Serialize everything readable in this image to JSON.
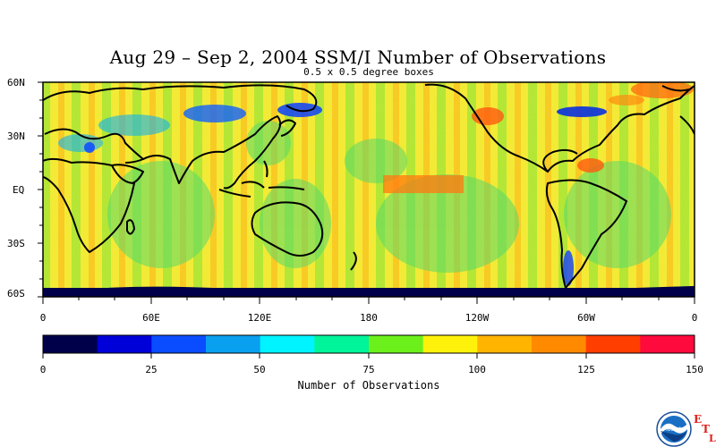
{
  "title": "Aug 29 – Sep 2, 2004 SSM/I Number of Observations",
  "subtitle": "0.5 x 0.5 degree boxes",
  "lat_labels": [
    "60N",
    "30N",
    "EQ",
    "30S",
    "60S"
  ],
  "lon_labels": [
    "0",
    "60E",
    "120E",
    "180",
    "120W",
    "60W",
    "0"
  ],
  "colorbar": {
    "colors": [
      "#00004a",
      "#0000d8",
      "#0a4cff",
      "#0aa0f0",
      "#00f4ff",
      "#00f49a",
      "#6cf01c",
      "#fff20a",
      "#ffb400",
      "#ff8a00",
      "#ff3e00",
      "#ff0a3c"
    ],
    "tick_labels": [
      "0",
      "25",
      "50",
      "75",
      "100",
      "125",
      "150"
    ],
    "label": "Number of Observations"
  },
  "logo": {
    "name": "noaa-logo",
    "text": "NOAA",
    "letters": [
      "E",
      "T",
      "L"
    ]
  }
}
